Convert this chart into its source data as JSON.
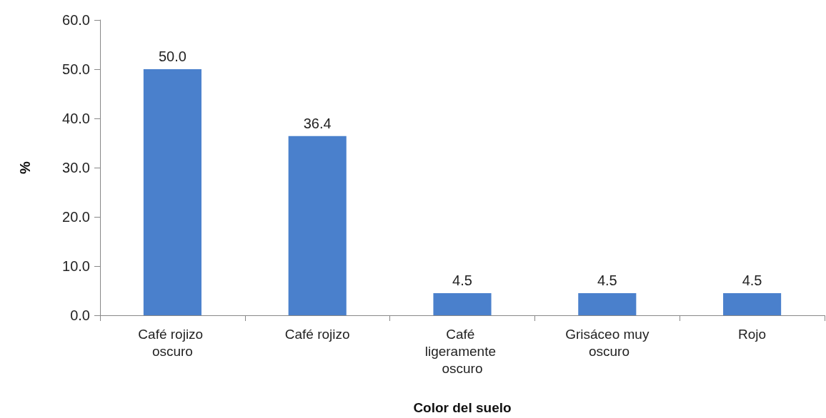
{
  "chart_data": {
    "type": "bar",
    "xlabel": "Color del suelo",
    "ylabel": "%",
    "categories": [
      "Café rojizo oscuro",
      "Café rojizo",
      "Café ligeramente oscuro",
      "Grisáceo muy oscuro",
      "Rojo"
    ],
    "values": [
      50.0,
      36.4,
      4.5,
      4.5,
      4.5
    ],
    "value_labels": [
      "50.0",
      "36.4",
      "4.5",
      "4.5",
      "4.5"
    ],
    "color": "#4a80cc",
    "ylim": [
      0,
      60
    ],
    "yticks": [
      {
        "value": 0,
        "label": "0.0"
      },
      {
        "value": 10,
        "label": "10.0"
      },
      {
        "value": 20,
        "label": "20.0"
      },
      {
        "value": 30,
        "label": "30.0"
      },
      {
        "value": 40,
        "label": "40.0"
      },
      {
        "value": 50,
        "label": "50.0"
      },
      {
        "value": 60,
        "label": "60.0"
      }
    ],
    "grid": false
  }
}
